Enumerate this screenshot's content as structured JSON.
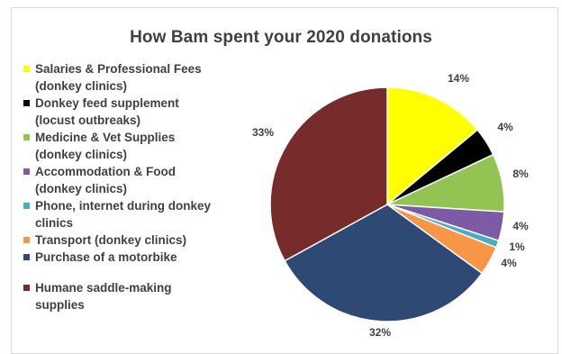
{
  "chart_data": {
    "type": "pie",
    "title": "How Bam spent your 2020 donations",
    "slices": [
      {
        "label": "Salaries & Professional Fees (donkey clinics)",
        "value": 14,
        "display": "14%",
        "color": "#ffff00"
      },
      {
        "label": "Donkey feed supplement (locust outbreaks)",
        "value": 4,
        "display": "4%",
        "color": "#000000"
      },
      {
        "label": "Medicine & Vet Supplies (donkey clinics)",
        "value": 8,
        "display": "8%",
        "color": "#92c353"
      },
      {
        "label": "Accommodation & Food (donkey clinics)",
        "value": 4,
        "display": "4%",
        "color": "#7d5aa6"
      },
      {
        "label": "Phone, internet during donkey clinics",
        "value": 1,
        "display": "1%",
        "color": "#4bacc6"
      },
      {
        "label": "Transport (donkey clinics)",
        "value": 4,
        "display": "4%",
        "color": "#f79646"
      },
      {
        "label": "Purchase of a motorbike",
        "value": 32,
        "display": "32%",
        "color": "#2e4a74"
      },
      {
        "label": "Humane saddle-making supplies",
        "value": 33,
        "display": "33%",
        "color": "#772b2b"
      }
    ],
    "legend_position": "left"
  }
}
